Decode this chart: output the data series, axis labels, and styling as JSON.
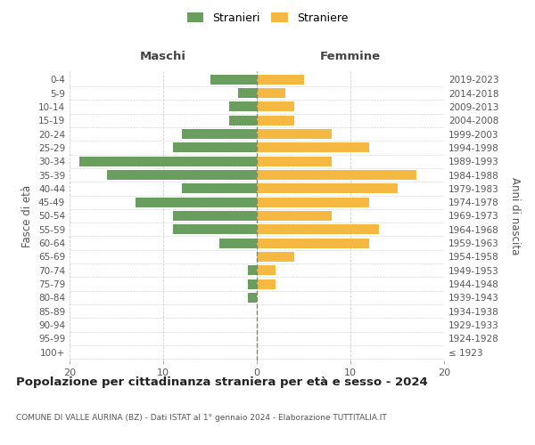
{
  "age_groups": [
    "100+",
    "95-99",
    "90-94",
    "85-89",
    "80-84",
    "75-79",
    "70-74",
    "65-69",
    "60-64",
    "55-59",
    "50-54",
    "45-49",
    "40-44",
    "35-39",
    "30-34",
    "25-29",
    "20-24",
    "15-19",
    "10-14",
    "5-9",
    "0-4"
  ],
  "birth_years": [
    "≤ 1923",
    "1924-1928",
    "1929-1933",
    "1934-1938",
    "1939-1943",
    "1944-1948",
    "1949-1953",
    "1954-1958",
    "1959-1963",
    "1964-1968",
    "1969-1973",
    "1974-1978",
    "1979-1983",
    "1984-1988",
    "1989-1993",
    "1994-1998",
    "1999-2003",
    "2004-2008",
    "2009-2013",
    "2014-2018",
    "2019-2023"
  ],
  "maschi": [
    0,
    0,
    0,
    0,
    1,
    1,
    1,
    0,
    4,
    9,
    9,
    13,
    8,
    16,
    19,
    9,
    8,
    3,
    3,
    2,
    5
  ],
  "femmine": [
    0,
    0,
    0,
    0,
    0,
    2,
    2,
    4,
    12,
    13,
    8,
    12,
    15,
    17,
    8,
    12,
    8,
    4,
    4,
    3,
    5
  ],
  "color_maschi": "#6a9e5e",
  "color_femmine": "#f5b942",
  "background_color": "#ffffff",
  "grid_color": "#cccccc",
  "xlim": 20,
  "title": "Popolazione per cittadinanza straniera per età e sesso - 2024",
  "subtitle": "COMUNE DI VALLE AURINA (BZ) - Dati ISTAT al 1° gennaio 2024 - Elaborazione TUTTITALIA.IT",
  "ylabel_left": "Fasce di età",
  "ylabel_right": "Anni di nascita",
  "label_maschi": "Maschi",
  "label_femmine": "Femmine",
  "legend_stranieri": "Stranieri",
  "legend_straniere": "Straniere"
}
